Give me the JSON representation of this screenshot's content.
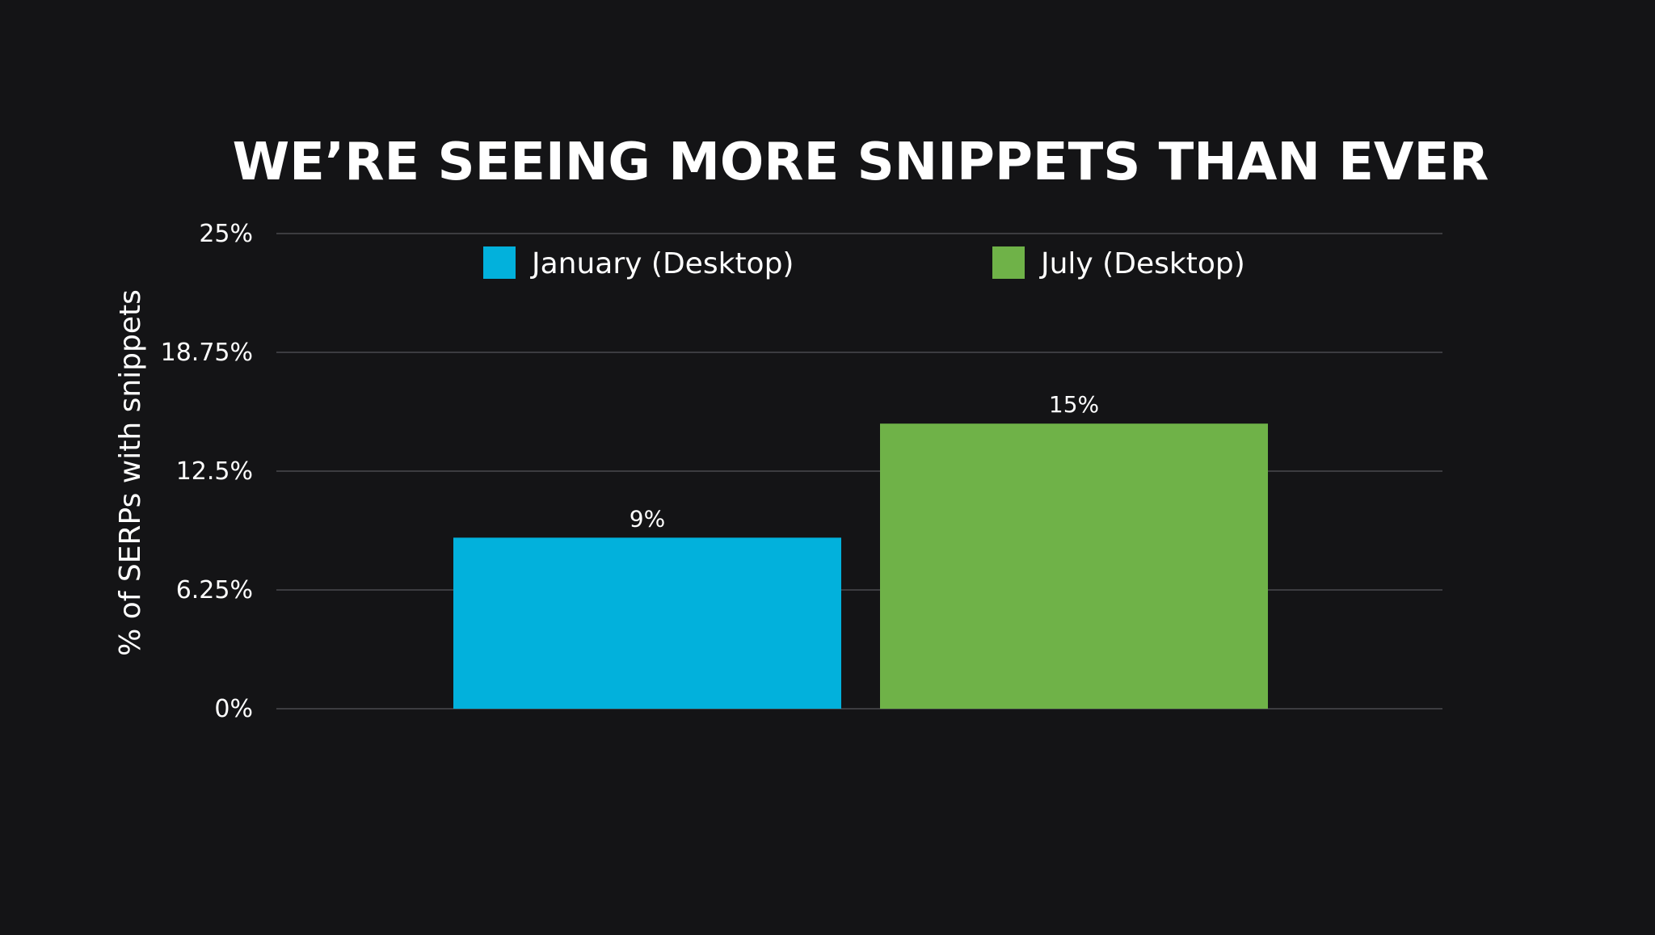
{
  "chart_data": {
    "type": "bar",
    "title": "WE’RE SEEING MORE SNIPPETS THAN EVER",
    "ylabel": "% of SERPs with snippets",
    "xlabel": "",
    "ylim": [
      0,
      25
    ],
    "yticks": [
      {
        "value": 0,
        "label": "0%"
      },
      {
        "value": 6.25,
        "label": "6.25%"
      },
      {
        "value": 12.5,
        "label": "12.5%"
      },
      {
        "value": 18.75,
        "label": "18.75%"
      },
      {
        "value": 25,
        "label": "25%"
      }
    ],
    "grid": true,
    "legend_position": "top",
    "series": [
      {
        "name": "January (Desktop)",
        "value": 9,
        "label": "9%",
        "color": "#02B1DC"
      },
      {
        "name": "July (Desktop)",
        "value": 15,
        "label": "15%",
        "color": "#6FB248"
      }
    ]
  },
  "colors": {
    "background": "#141416",
    "gridline": "#4A4A4E",
    "text": "#FFFFFF"
  }
}
